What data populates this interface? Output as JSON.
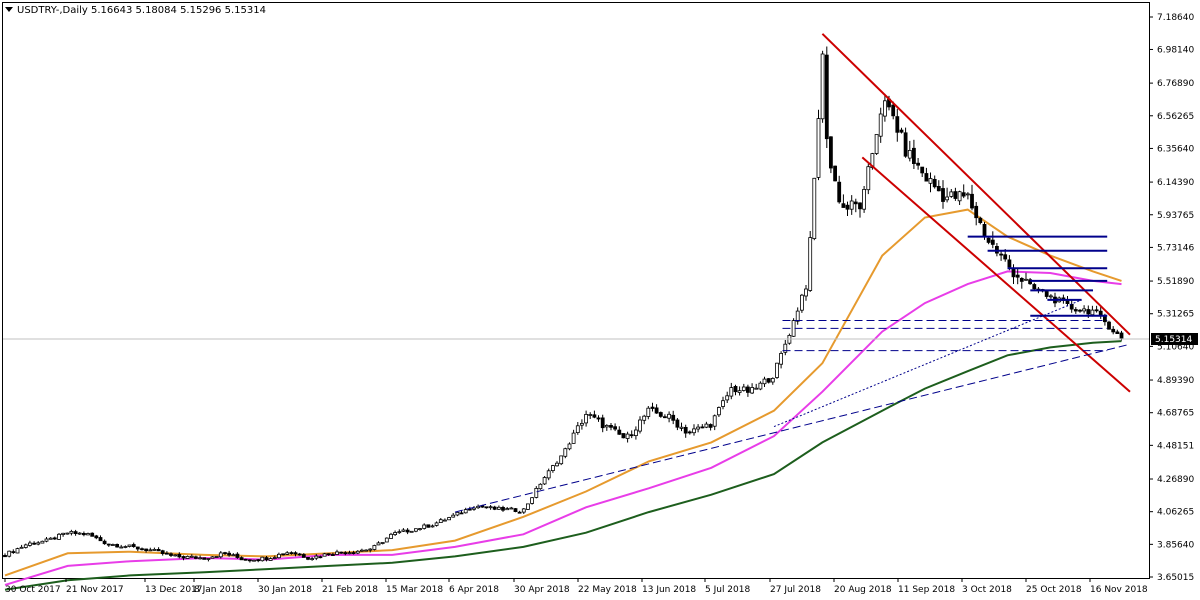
{
  "chart_data": {
    "type": "candlestick",
    "symbol_header": "USDTRY-,Daily",
    "ohlc_header": "5.16643 5.18084 5.15296 5.15314",
    "last_price": 5.15314,
    "last_price_label": "5.15314",
    "ylim": [
      3.65015,
      7.1864
    ],
    "y_ticks": [
      3.65015,
      3.8564,
      4.06265,
      4.2689,
      4.48151,
      4.68765,
      4.8939,
      5.1064,
      5.31265,
      5.5189,
      5.73146,
      5.93765,
      6.1439,
      6.3564,
      6.56265,
      6.7689,
      6.9814,
      7.1864
    ],
    "y_tick_labels": [
      "3.65015",
      "3.85640",
      "4.06265",
      "4.26890",
      "4.48151",
      "4.68765",
      "4.89390",
      "5.10640",
      "5.31265",
      "5.51890",
      "5.73146",
      "5.93765",
      "6.14390",
      "6.35640",
      "6.56265",
      "6.76890",
      "6.98140",
      "7.18640"
    ],
    "x_ticks": [
      "30 Oct 2017",
      "21 Nov 2017",
      "13 Dec 2017",
      "8 Jan 2018",
      "30 Jan 2018",
      "21 Feb 2018",
      "15 Mar 2018",
      "6 Apr 2018",
      "30 Apr 2018",
      "22 May 2018",
      "13 Jun 2018",
      "5 Jul 2018",
      "27 Jul 2018",
      "20 Aug 2018",
      "11 Sep 2018",
      "3 Oct 2018",
      "25 Oct 2018",
      "16 Nov 2018"
    ],
    "close_series": [
      {
        "date": "2017-10-30",
        "close": 3.79
      },
      {
        "date": "2017-11-07",
        "close": 3.86
      },
      {
        "date": "2017-11-14",
        "close": 3.88
      },
      {
        "date": "2017-11-21",
        "close": 3.93
      },
      {
        "date": "2017-11-28",
        "close": 3.92
      },
      {
        "date": "2017-12-05",
        "close": 3.86
      },
      {
        "date": "2017-12-13",
        "close": 3.84
      },
      {
        "date": "2017-12-20",
        "close": 3.82
      },
      {
        "date": "2017-12-28",
        "close": 3.78
      },
      {
        "date": "2018-01-08",
        "close": 3.77
      },
      {
        "date": "2018-01-15",
        "close": 3.8
      },
      {
        "date": "2018-01-22",
        "close": 3.76
      },
      {
        "date": "2018-01-30",
        "close": 3.77
      },
      {
        "date": "2018-02-07",
        "close": 3.81
      },
      {
        "date": "2018-02-14",
        "close": 3.77
      },
      {
        "date": "2018-02-21",
        "close": 3.8
      },
      {
        "date": "2018-03-01",
        "close": 3.81
      },
      {
        "date": "2018-03-08",
        "close": 3.83
      },
      {
        "date": "2018-03-15",
        "close": 3.92
      },
      {
        "date": "2018-03-22",
        "close": 3.95
      },
      {
        "date": "2018-03-29",
        "close": 3.98
      },
      {
        "date": "2018-04-06",
        "close": 4.04
      },
      {
        "date": "2018-04-13",
        "close": 4.1
      },
      {
        "date": "2018-04-20",
        "close": 4.08
      },
      {
        "date": "2018-04-30",
        "close": 4.07
      },
      {
        "date": "2018-05-07",
        "close": 4.27
      },
      {
        "date": "2018-05-14",
        "close": 4.43
      },
      {
        "date": "2018-05-22",
        "close": 4.68
      },
      {
        "date": "2018-05-29",
        "close": 4.6
      },
      {
        "date": "2018-06-05",
        "close": 4.52
      },
      {
        "date": "2018-06-13",
        "close": 4.7
      },
      {
        "date": "2018-06-20",
        "close": 4.66
      },
      {
        "date": "2018-06-27",
        "close": 4.56
      },
      {
        "date": "2018-07-05",
        "close": 4.62
      },
      {
        "date": "2018-07-12",
        "close": 4.84
      },
      {
        "date": "2018-07-19",
        "close": 4.82
      },
      {
        "date": "2018-07-27",
        "close": 4.93
      },
      {
        "date": "2018-08-03",
        "close": 5.27
      },
      {
        "date": "2018-08-08",
        "close": 5.55
      },
      {
        "date": "2018-08-13",
        "close": 6.95
      },
      {
        "date": "2018-08-15",
        "close": 6.3
      },
      {
        "date": "2018-08-20",
        "close": 5.98
      },
      {
        "date": "2018-08-27",
        "close": 6.0
      },
      {
        "date": "2018-09-03",
        "close": 6.65
      },
      {
        "date": "2018-09-07",
        "close": 6.55
      },
      {
        "date": "2018-09-11",
        "close": 6.35
      },
      {
        "date": "2018-09-18",
        "close": 6.18
      },
      {
        "date": "2018-09-25",
        "close": 6.05
      },
      {
        "date": "2018-10-03",
        "close": 6.05
      },
      {
        "date": "2018-10-10",
        "close": 5.78
      },
      {
        "date": "2018-10-17",
        "close": 5.62
      },
      {
        "date": "2018-10-25",
        "close": 5.48
      },
      {
        "date": "2018-11-01",
        "close": 5.42
      },
      {
        "date": "2018-11-08",
        "close": 5.35
      },
      {
        "date": "2018-11-16",
        "close": 5.33
      },
      {
        "date": "2018-11-21",
        "close": 5.25
      },
      {
        "date": "2018-11-26",
        "close": 5.15314
      }
    ],
    "moving_averages": [
      {
        "color": "#E69A2E",
        "points": [
          [
            "2017-10-30",
            3.66
          ],
          [
            "2017-11-21",
            3.8
          ],
          [
            "2017-12-13",
            3.81
          ],
          [
            "2018-01-08",
            3.79
          ],
          [
            "2018-01-30",
            3.78
          ],
          [
            "2018-02-21",
            3.8
          ],
          [
            "2018-03-15",
            3.82
          ],
          [
            "2018-04-06",
            3.88
          ],
          [
            "2018-04-30",
            4.03
          ],
          [
            "2018-05-22",
            4.19
          ],
          [
            "2018-06-13",
            4.38
          ],
          [
            "2018-07-05",
            4.5
          ],
          [
            "2018-07-27",
            4.7
          ],
          [
            "2018-08-13",
            5.0
          ],
          [
            "2018-09-03",
            5.68
          ],
          [
            "2018-09-18",
            5.92
          ],
          [
            "2018-10-03",
            5.97
          ],
          [
            "2018-10-17",
            5.8
          ],
          [
            "2018-11-01",
            5.68
          ],
          [
            "2018-11-16",
            5.58
          ],
          [
            "2018-11-26",
            5.52
          ]
        ]
      },
      {
        "color": "#E83DE8",
        "points": [
          [
            "2017-10-30",
            3.6
          ],
          [
            "2017-11-21",
            3.72
          ],
          [
            "2017-12-13",
            3.75
          ],
          [
            "2018-01-08",
            3.77
          ],
          [
            "2018-01-30",
            3.76
          ],
          [
            "2018-02-21",
            3.79
          ],
          [
            "2018-03-15",
            3.79
          ],
          [
            "2018-04-06",
            3.84
          ],
          [
            "2018-04-30",
            3.92
          ],
          [
            "2018-05-22",
            4.09
          ],
          [
            "2018-06-13",
            4.21
          ],
          [
            "2018-07-05",
            4.34
          ],
          [
            "2018-07-27",
            4.54
          ],
          [
            "2018-08-13",
            4.82
          ],
          [
            "2018-09-03",
            5.2
          ],
          [
            "2018-09-18",
            5.38
          ],
          [
            "2018-10-03",
            5.5
          ],
          [
            "2018-10-17",
            5.58
          ],
          [
            "2018-11-01",
            5.57
          ],
          [
            "2018-11-16",
            5.52
          ],
          [
            "2018-11-26",
            5.5
          ]
        ]
      },
      {
        "color": "#1D5E1D",
        "points": [
          [
            "2017-10-30",
            3.57
          ],
          [
            "2017-11-21",
            3.63
          ],
          [
            "2017-12-13",
            3.66
          ],
          [
            "2018-01-08",
            3.68
          ],
          [
            "2018-01-30",
            3.7
          ],
          [
            "2018-02-21",
            3.72
          ],
          [
            "2018-03-15",
            3.74
          ],
          [
            "2018-04-06",
            3.78
          ],
          [
            "2018-04-30",
            3.84
          ],
          [
            "2018-05-22",
            3.93
          ],
          [
            "2018-06-13",
            4.06
          ],
          [
            "2018-07-05",
            4.17
          ],
          [
            "2018-07-27",
            4.3
          ],
          [
            "2018-08-13",
            4.5
          ],
          [
            "2018-09-03",
            4.7
          ],
          [
            "2018-09-18",
            4.84
          ],
          [
            "2018-10-03",
            4.95
          ],
          [
            "2018-10-17",
            5.05
          ],
          [
            "2018-11-01",
            5.1
          ],
          [
            "2018-11-16",
            5.13
          ],
          [
            "2018-11-26",
            5.14
          ]
        ]
      }
    ],
    "trend_lines": [
      {
        "style": "solid",
        "color": "#CC0000",
        "from": [
          "2018-08-13",
          7.08
        ],
        "to": [
          "2018-11-29",
          5.18
        ]
      },
      {
        "style": "solid",
        "color": "#CC0000",
        "from": [
          "2018-08-27",
          6.3
        ],
        "to": [
          "2018-11-29",
          4.82
        ]
      },
      {
        "style": "dashed",
        "color": "#00008B",
        "from": [
          "2018-04-06",
          4.06
        ],
        "to": [
          "2018-11-29",
          5.12
        ]
      },
      {
        "style": "dotted",
        "color": "#00008B",
        "from": [
          "2018-07-27",
          4.6
        ],
        "to": [
          "2018-11-12",
          5.4
        ]
      }
    ],
    "horizontal_levels": [
      {
        "style": "solid",
        "color": "#00008B",
        "value": 5.8,
        "from": "2018-10-03",
        "to": "2018-11-21"
      },
      {
        "style": "solid",
        "color": "#00008B",
        "value": 5.71,
        "from": "2018-10-10",
        "to": "2018-11-21"
      },
      {
        "style": "solid",
        "color": "#00008B",
        "value": 5.6,
        "from": "2018-10-17",
        "to": "2018-11-21"
      },
      {
        "style": "solid",
        "color": "#00008B",
        "value": 5.52,
        "from": "2018-10-25",
        "to": "2018-11-21"
      },
      {
        "style": "solid",
        "color": "#00008B",
        "value": 5.46,
        "from": "2018-10-25",
        "to": "2018-11-16"
      },
      {
        "style": "solid",
        "color": "#00008B",
        "value": 5.4,
        "from": "2018-10-31",
        "to": "2018-11-12"
      },
      {
        "style": "solid",
        "color": "#00008B",
        "value": 5.3,
        "from": "2018-10-25",
        "to": "2018-11-21"
      },
      {
        "style": "dashed",
        "color": "#00008B",
        "value": 5.27,
        "from": "2018-07-30",
        "to": "2018-11-21"
      },
      {
        "style": "dashed",
        "color": "#00008B",
        "value": 5.22,
        "from": "2018-07-30",
        "to": "2018-11-21"
      },
      {
        "style": "dashed",
        "color": "#00008B",
        "value": 5.08,
        "from": "2018-07-30",
        "to": "2018-11-21"
      }
    ],
    "current_price_line_color": "#C0C0C0",
    "grid": false,
    "background": "#FFFFFF"
  }
}
